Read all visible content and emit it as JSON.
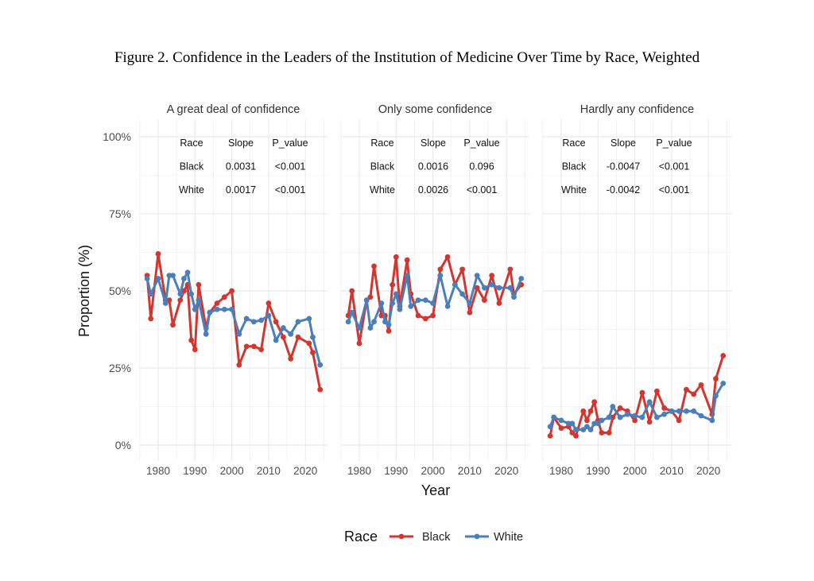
{
  "title": "Figure 2. Confidence in the Leaders of the Institution of Medicine Over Time by Race, Weighted",
  "colors": {
    "Black": "#d5352f",
    "White": "#4b7fbb",
    "grid": "#ebebeb"
  },
  "chart_data": {
    "type": "line",
    "xlabel": "Year",
    "ylabel": "Proportion (%)",
    "xlim": [
      1975,
      2026
    ],
    "ylim": [
      0,
      100
    ],
    "x_ticks": [
      "1980",
      "1990",
      "2000",
      "2010",
      "2020"
    ],
    "y_ticks": [
      "0%",
      "25%",
      "50%",
      "75%",
      "100%"
    ],
    "grid": true,
    "legend": {
      "title": "Race",
      "position": "bottom",
      "entries": [
        "Black",
        "White"
      ]
    },
    "x": [
      1977,
      1978,
      1980,
      1982,
      1983,
      1984,
      1986,
      1987,
      1988,
      1989,
      1990,
      1991,
      1993,
      1994,
      1996,
      1998,
      2000,
      2002,
      2004,
      2006,
      2008,
      2010,
      2012,
      2014,
      2016,
      2018,
      2021,
      2022,
      2024
    ],
    "facets": [
      {
        "label": "A great deal of confidence",
        "table": {
          "header": [
            "Race",
            "Slope",
            "P_value"
          ],
          "rows": [
            [
              "Black",
              "0.0031",
              "<0.001"
            ],
            [
              "White",
              "0.0017",
              "<0.001"
            ]
          ]
        },
        "series": [
          {
            "name": "Black",
            "values": [
              55,
              41,
              62,
              47,
              47,
              39,
              47,
              50,
              52,
              34,
              31,
              52,
              38,
              43,
              46,
              48,
              50,
              26,
              32,
              32,
              31,
              46,
              40,
              35,
              28,
              35,
              33,
              30,
              18
            ]
          },
          {
            "name": "White",
            "values": [
              54,
              49,
              54,
              46,
              55,
              55,
              49,
              54,
              56,
              49,
              44,
              47,
              36,
              43,
              44,
              44,
              44,
              36,
              41,
              40,
              40.5,
              42,
              34,
              38,
              36,
              40,
              41,
              35,
              26
            ]
          }
        ]
      },
      {
        "label": "Only some confidence",
        "table": {
          "header": [
            "Race",
            "Slope",
            "P_value"
          ],
          "rows": [
            [
              "Black",
              "0.0016",
              "0.096"
            ],
            [
              "White",
              "0.0026",
              "<0.001"
            ]
          ]
        },
        "series": [
          {
            "name": "Black",
            "values": [
              42,
              50,
              33,
              47,
              48,
              58,
              42,
              42,
              37,
              52,
              61,
              45,
              60,
              49,
              42,
              41,
              42,
              57,
              61,
              52,
              57,
              43,
              51,
              47,
              55,
              46,
              57,
              49,
              52
            ]
          },
          {
            "name": "White",
            "values": [
              40,
              43,
              38,
              47,
              38,
              40,
              46,
              40,
              39,
              46,
              49,
              44,
              55,
              45,
              47,
              47,
              46,
              55,
              45,
              52,
              49,
              46,
              55,
              51,
              52,
              51,
              51,
              48,
              54
            ]
          }
        ]
      },
      {
        "label": "Hardly any confidence",
        "table": {
          "header": [
            "Race",
            "Slope",
            "P_value"
          ],
          "rows": [
            [
              "Black",
              "-0.0047",
              "<0.001"
            ],
            [
              "White",
              "-0.0042",
              "<0.001"
            ]
          ]
        },
        "series": [
          {
            "name": "Black",
            "values": [
              3,
              9,
              5.5,
              6,
              4,
              3,
              11,
              8,
              11,
              14,
              8,
              4,
              4,
              9,
              12,
              11,
              8,
              17,
              7.5,
              17.5,
              12,
              11,
              8,
              18,
              16.5,
              19.5,
              10,
              21.5,
              29
            ]
          },
          {
            "name": "White",
            "values": [
              6,
              9,
              8,
              7,
              7,
              5,
              5,
              6,
              5,
              7,
              7,
              8,
              9,
              12.5,
              9,
              10,
              9.5,
              9,
              14,
              9,
              10,
              11,
              11,
              11,
              11,
              9.5,
              8,
              16,
              20
            ]
          }
        ]
      }
    ]
  }
}
